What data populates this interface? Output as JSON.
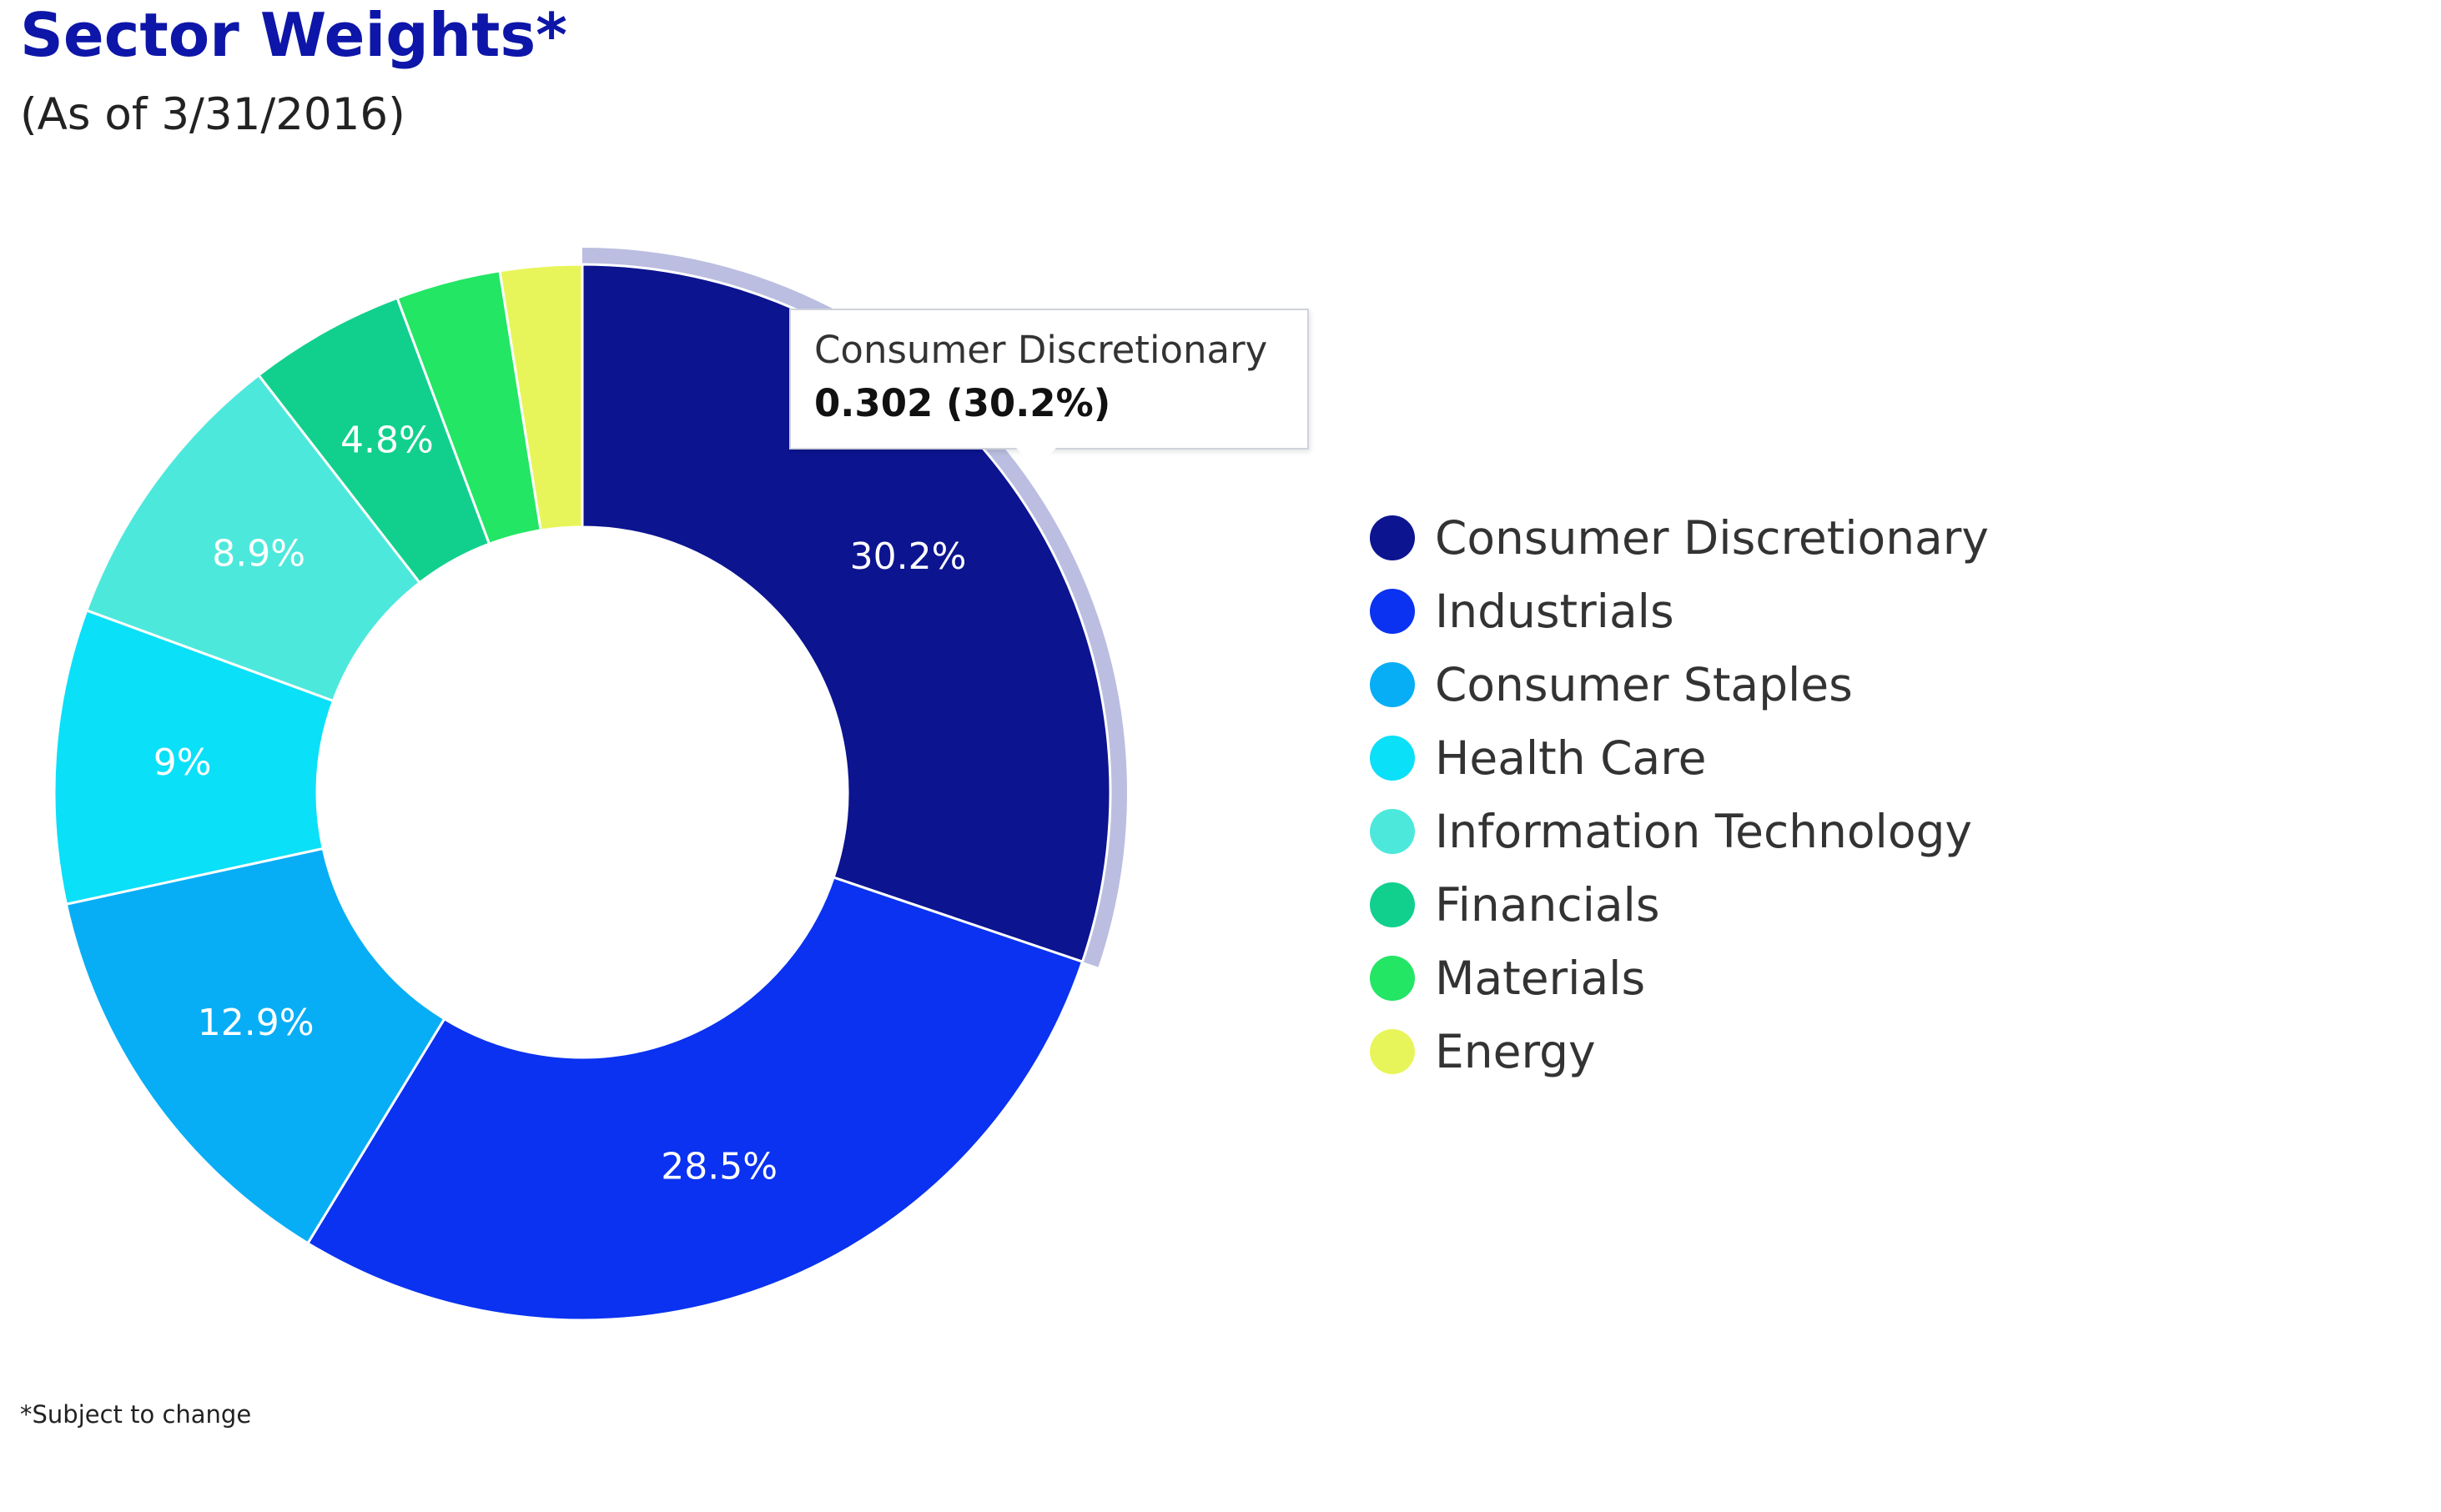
{
  "header": {
    "title": "Sector Weights*",
    "subtitle": "(As of 3/31/2016)"
  },
  "footnote": "*Subject to change",
  "tooltip": {
    "name": "Consumer Discretionary",
    "value": "0.302 (30.2%)"
  },
  "chart_data": {
    "type": "pie",
    "variant": "donut",
    "title": "",
    "legend_position": "right",
    "highlighted": "Consumer Discretionary",
    "slices": [
      {
        "name": "Consumer Discretionary",
        "value": 30.2,
        "label": "30.2%",
        "color": "#0c1490"
      },
      {
        "name": "Industrials",
        "value": 28.5,
        "label": "28.5%",
        "color": "#0a32f0"
      },
      {
        "name": "Consumer Staples",
        "value": 12.9,
        "label": "12.9%",
        "color": "#08aef5"
      },
      {
        "name": "Health Care",
        "value": 9.0,
        "label": "9%",
        "color": "#0ae0f8"
      },
      {
        "name": "Information Technology",
        "value": 8.9,
        "label": "8.9%",
        "color": "#4de8dc"
      },
      {
        "name": "Financials",
        "value": 4.8,
        "label": "4.8%",
        "color": "#11d08e"
      },
      {
        "name": "Materials",
        "value": 3.2,
        "label": "",
        "color": "#22e664"
      },
      {
        "name": "Energy",
        "value": 2.5,
        "label": "",
        "color": "#e8f55a"
      }
    ]
  }
}
